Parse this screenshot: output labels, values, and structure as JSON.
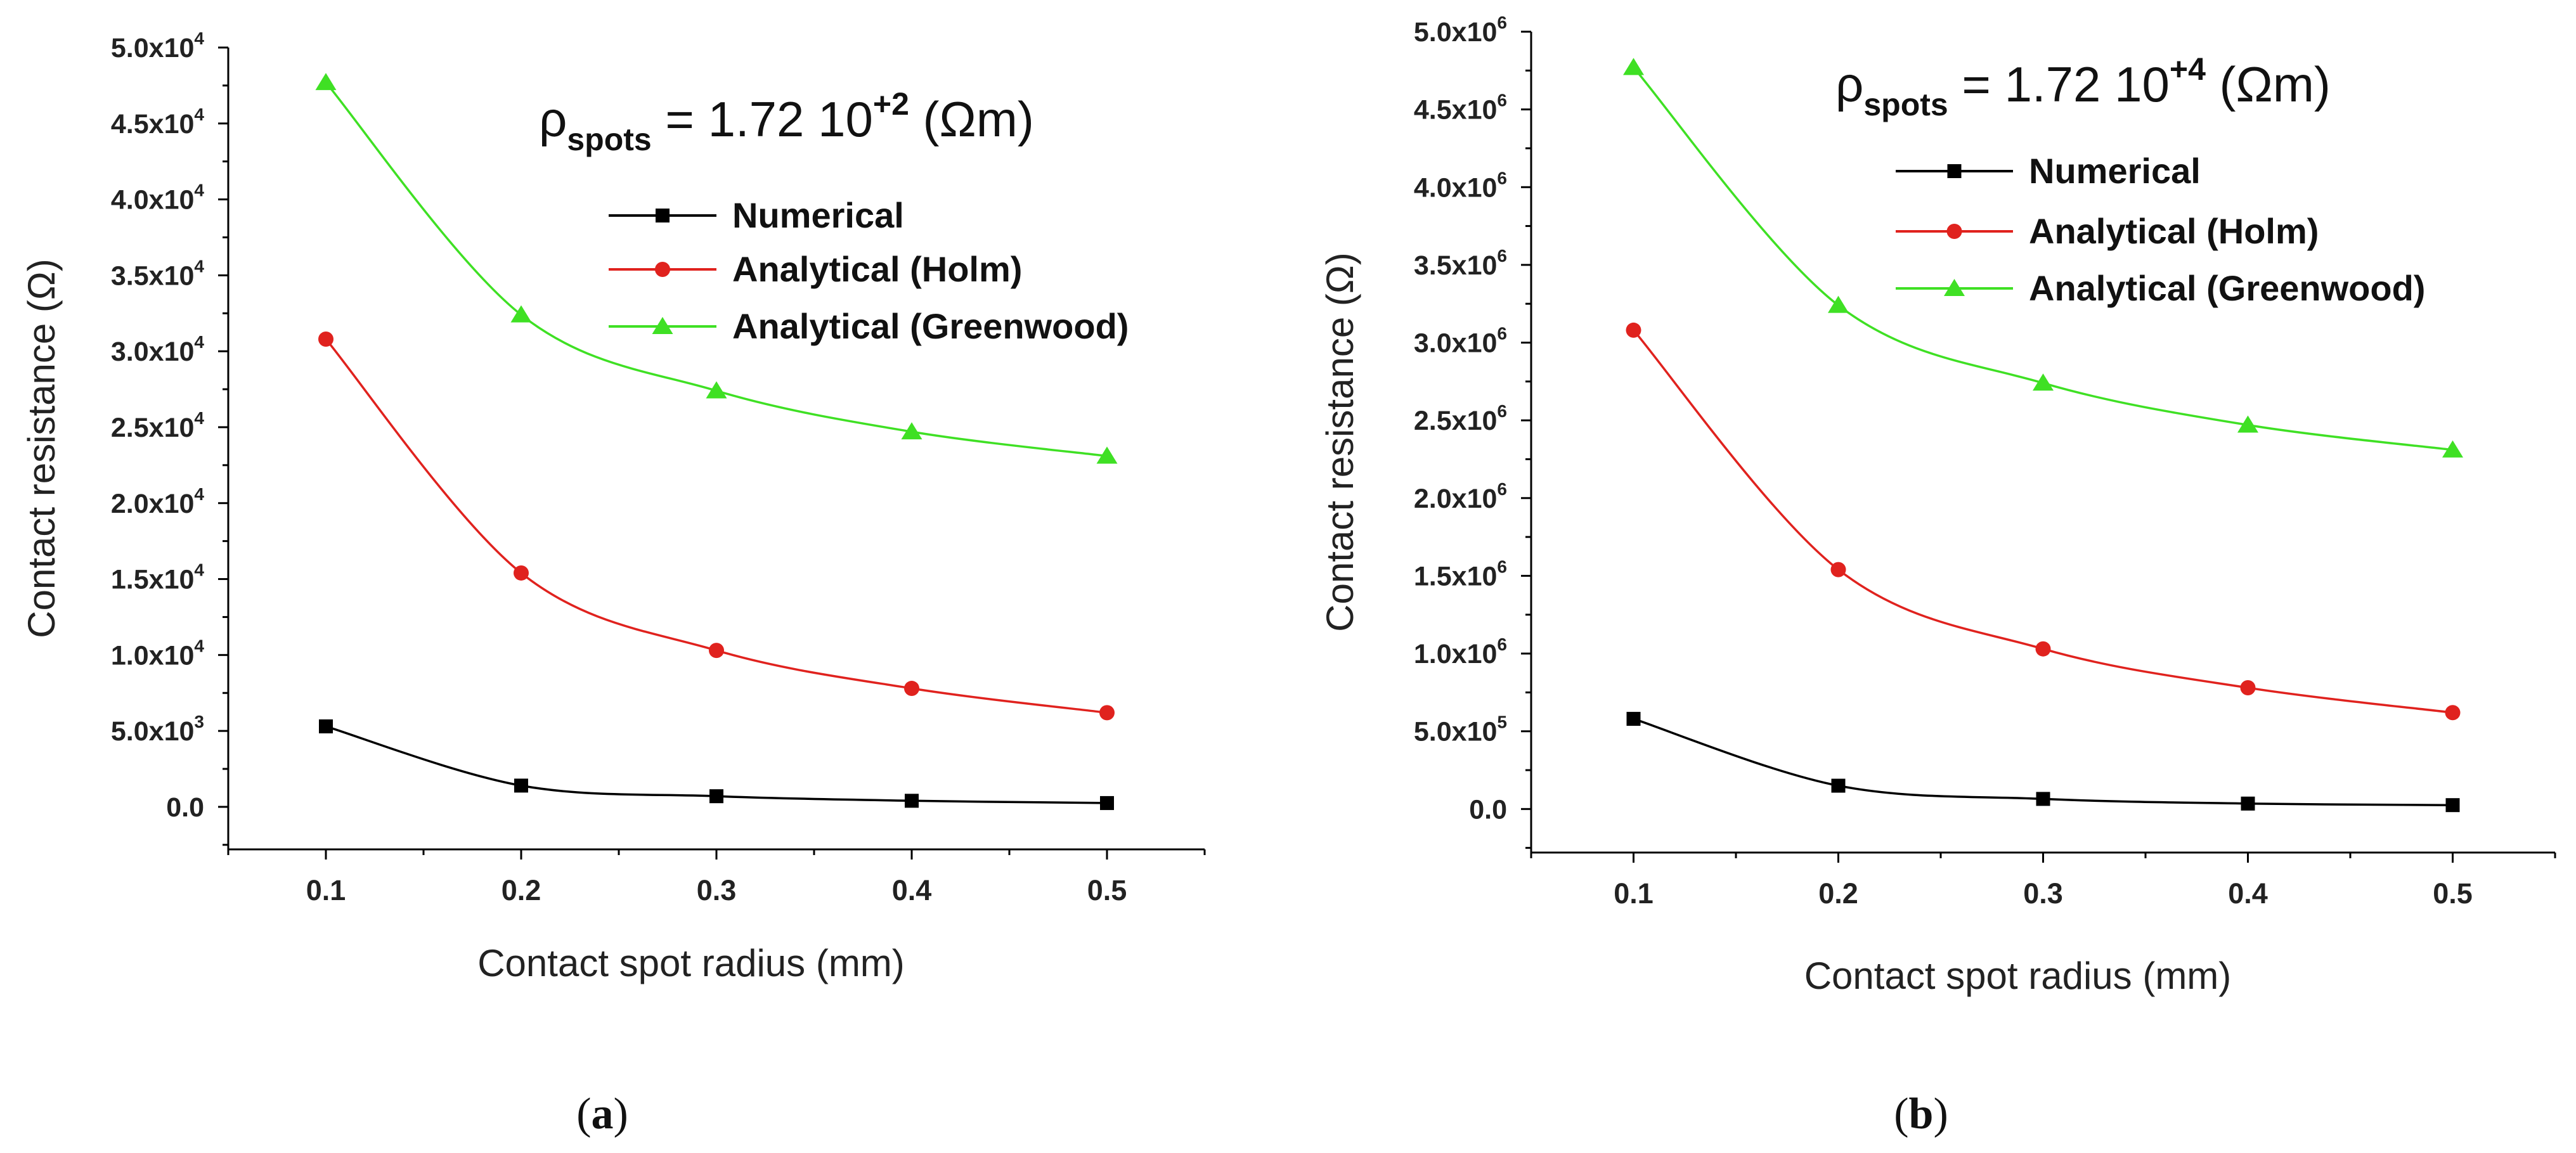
{
  "colors": {
    "numerical": "#000000",
    "holm": "#e0221e",
    "greenwood": "#3fe024",
    "axis": "#000000"
  },
  "chart_data": [
    {
      "type": "line",
      "panel_label": "a",
      "xlabel": "Contact spot radius (mm)",
      "ylabel": "Contact resistance (Ω)",
      "x": [
        0.1,
        0.2,
        0.3,
        0.4,
        0.5
      ],
      "xlim": [
        0.05,
        0.55
      ],
      "xticks": [
        0.1,
        0.2,
        0.3,
        0.4,
        0.5
      ],
      "xtick_labels": [
        "0.1",
        "0.2",
        "0.3",
        "0.4",
        "0.5"
      ],
      "ylim": [
        -2800,
        50000
      ],
      "yticks": [
        0,
        5000,
        10000,
        15000,
        20000,
        25000,
        30000,
        35000,
        40000,
        45000,
        50000
      ],
      "ytick_labels": [
        {
          "mant": "0.0",
          "exp": ""
        },
        {
          "mant": "5.0x10",
          "exp": "3"
        },
        {
          "mant": "1.0x10",
          "exp": "4"
        },
        {
          "mant": "1.5x10",
          "exp": "4"
        },
        {
          "mant": "2.0x10",
          "exp": "4"
        },
        {
          "mant": "2.5x10",
          "exp": "4"
        },
        {
          "mant": "3.0x10",
          "exp": "4"
        },
        {
          "mant": "3.5x10",
          "exp": "4"
        },
        {
          "mant": "4.0x10",
          "exp": "4"
        },
        {
          "mant": "4.5x10",
          "exp": "4"
        },
        {
          "mant": "5.0x10",
          "exp": "4"
        }
      ],
      "annotation": {
        "rho": "ρ",
        "sub": "spots",
        "text": " = 1.72 10",
        "sup": "+2",
        "unit": " (Ωm)"
      },
      "legend_position": "top-right",
      "series": [
        {
          "name": "Numerical",
          "marker": "square",
          "color_key": "numerical",
          "values": [
            5300,
            1400,
            700,
            400,
            250
          ]
        },
        {
          "name": "Analytical (Holm)",
          "marker": "circle",
          "color_key": "holm",
          "values": [
            30800,
            15400,
            10300,
            7800,
            6200
          ]
        },
        {
          "name": "Analytical (Greenwood)",
          "marker": "triangle",
          "color_key": "greenwood",
          "values": [
            47700,
            32400,
            27400,
            24700,
            23100
          ]
        }
      ]
    },
    {
      "type": "line",
      "panel_label": "b",
      "xlabel": "Contact spot radius (mm)",
      "ylabel": "Contact resistance (Ω)",
      "x": [
        0.1,
        0.2,
        0.3,
        0.4,
        0.5
      ],
      "xlim": [
        0.05,
        0.55
      ],
      "xticks": [
        0.1,
        0.2,
        0.3,
        0.4,
        0.5
      ],
      "xtick_labels": [
        "0.1",
        "0.2",
        "0.3",
        "0.4",
        "0.5"
      ],
      "ylim": [
        -280000,
        5000000
      ],
      "yticks": [
        0,
        500000,
        1000000,
        1500000,
        2000000,
        2500000,
        3000000,
        3500000,
        4000000,
        4500000,
        5000000
      ],
      "ytick_labels": [
        {
          "mant": "0.0",
          "exp": ""
        },
        {
          "mant": "5.0x10",
          "exp": "5"
        },
        {
          "mant": "1.0x10",
          "exp": "6"
        },
        {
          "mant": "1.5x10",
          "exp": "6"
        },
        {
          "mant": "2.0x10",
          "exp": "6"
        },
        {
          "mant": "2.5x10",
          "exp": "6"
        },
        {
          "mant": "3.0x10",
          "exp": "6"
        },
        {
          "mant": "3.5x10",
          "exp": "6"
        },
        {
          "mant": "4.0x10",
          "exp": "6"
        },
        {
          "mant": "4.5x10",
          "exp": "6"
        },
        {
          "mant": "5.0x10",
          "exp": "6"
        }
      ],
      "annotation": {
        "rho": "ρ",
        "sub": "spots",
        "text": " = 1.72 10",
        "sup": "+4",
        "unit": " (Ωm)"
      },
      "legend_position": "top-right",
      "series": [
        {
          "name": "Numerical",
          "marker": "square",
          "color_key": "numerical",
          "values": [
            580000,
            150000,
            65000,
            35000,
            25000
          ]
        },
        {
          "name": "Analytical (Holm)",
          "marker": "circle",
          "color_key": "holm",
          "values": [
            3080000,
            1540000,
            1030000,
            780000,
            620000
          ]
        },
        {
          "name": "Analytical (Greenwood)",
          "marker": "triangle",
          "color_key": "greenwood",
          "values": [
            4770000,
            3240000,
            2740000,
            2470000,
            2310000
          ]
        }
      ]
    }
  ]
}
